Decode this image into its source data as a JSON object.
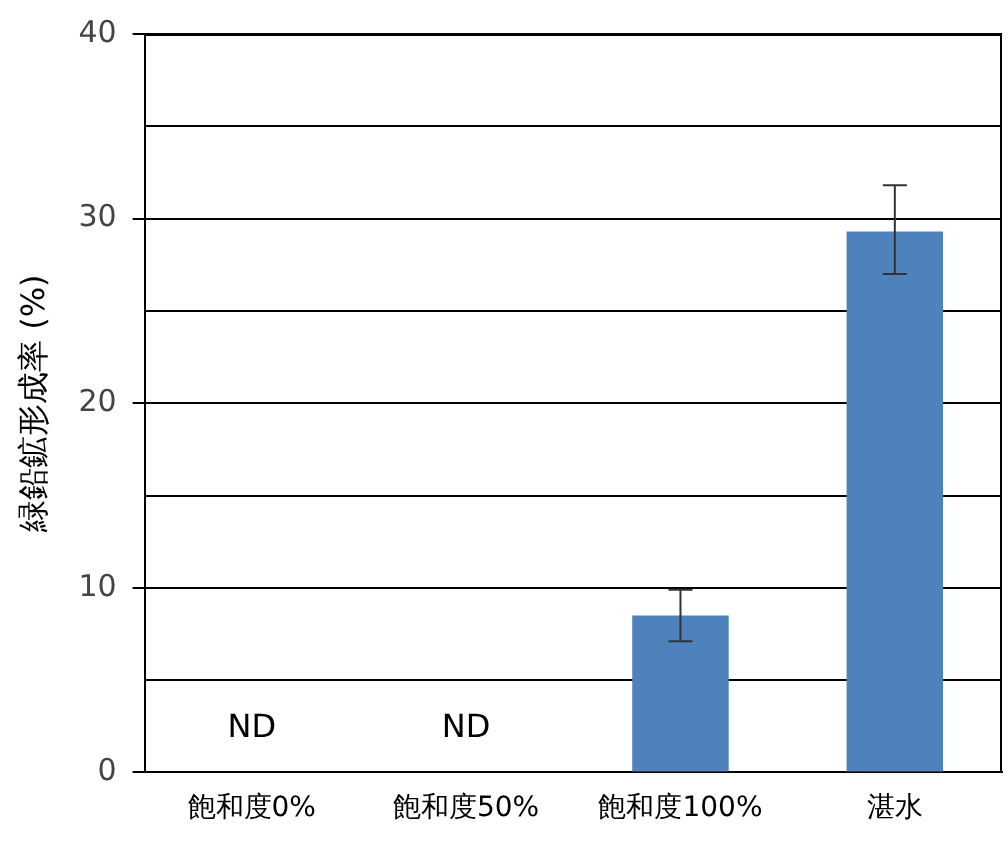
{
  "chart_data": {
    "type": "bar",
    "ylabel": "緑鉛鉱形成率 (%)",
    "categories": [
      "飽和度0%",
      "飽和度50%",
      "飽和度100%",
      "湛水"
    ],
    "values": [
      null,
      null,
      8.5,
      29.3
    ],
    "value_labels": [
      "ND",
      "ND",
      null,
      null
    ],
    "errors": [
      null,
      null,
      [
        7.1,
        9.9
      ],
      [
        27.0,
        31.8
      ]
    ],
    "color": "#4f81bd",
    "ylim": [
      0,
      40
    ],
    "yticks": [
      0,
      {
        "value": 5,
        "label": null
      },
      10,
      {
        "value": 15,
        "label": null
      },
      20,
      {
        "value": 25,
        "label": null
      },
      30,
      {
        "value": 35,
        "label": null
      },
      40
    ],
    "grid": "y",
    "legend": false
  }
}
